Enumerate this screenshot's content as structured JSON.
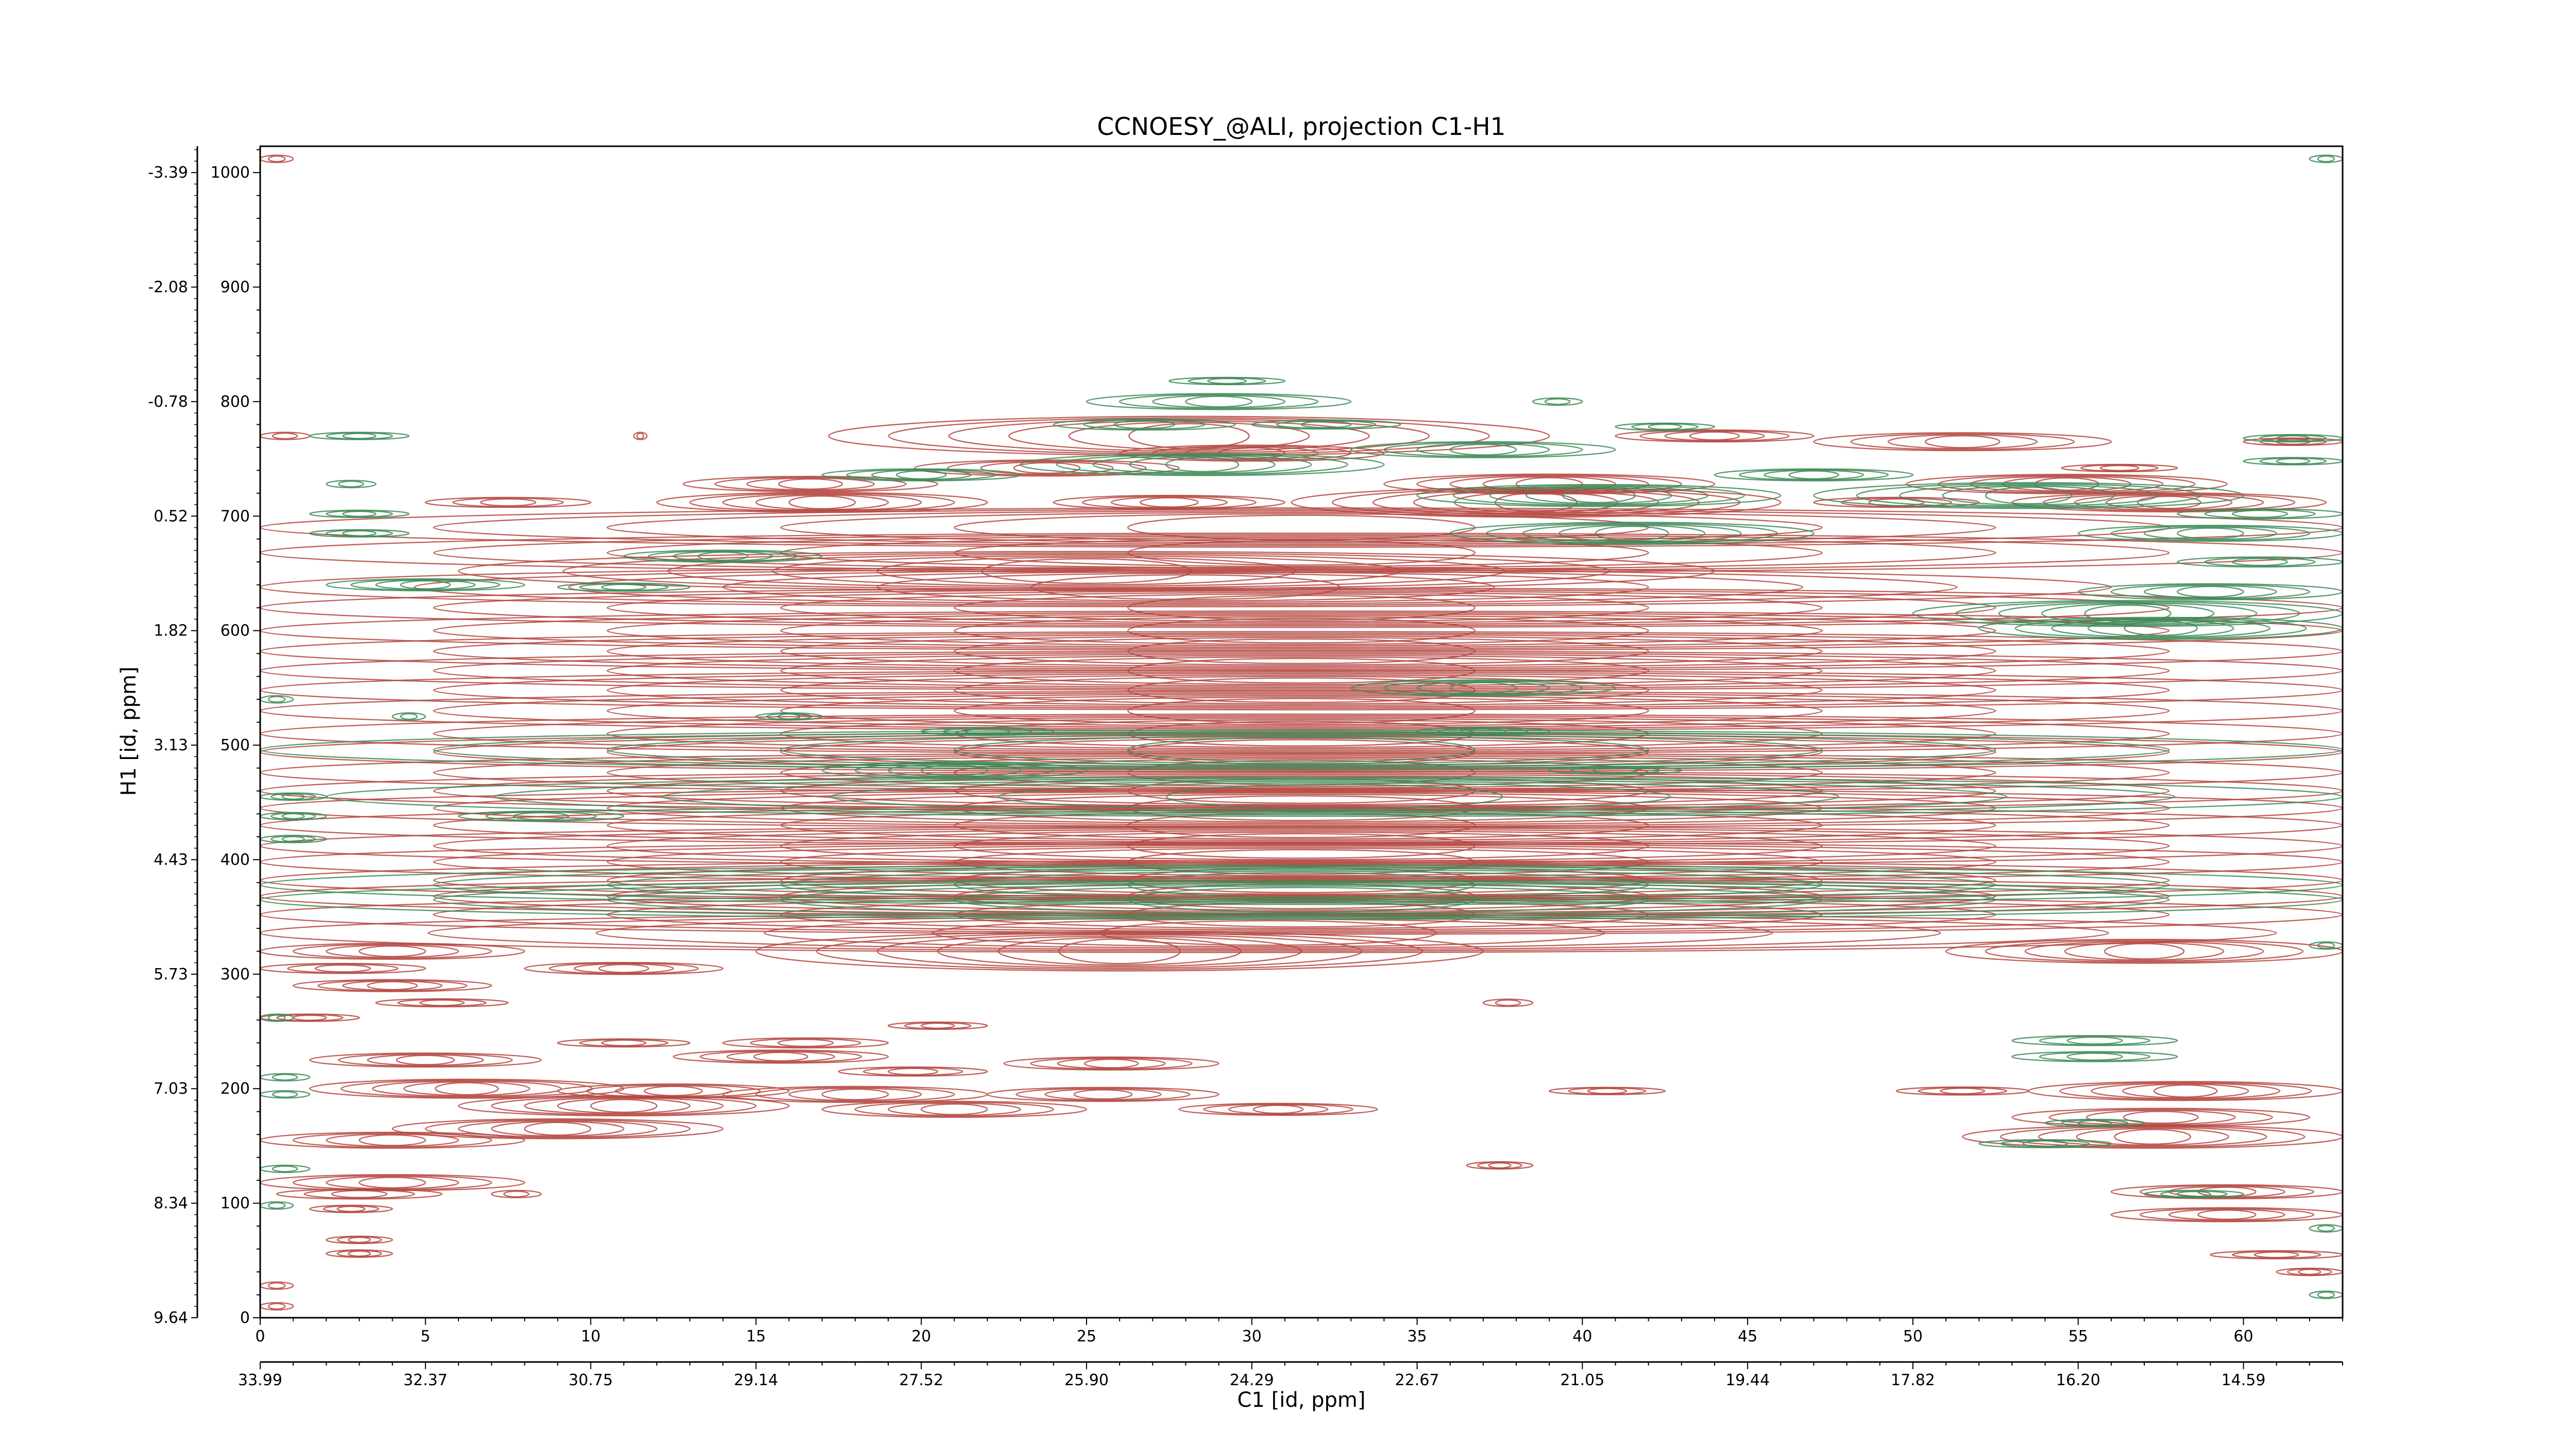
{
  "chart_data": {
    "type": "contour",
    "title": "CCNOESY_@ALI, projection C1-H1",
    "xlabel": "C1 [id, ppm]",
    "ylabel": "H1 [id, ppm]",
    "xlim": [
      0,
      63
    ],
    "ylim": [
      0,
      1023
    ],
    "grid": false,
    "x_index_ticks": [
      0,
      5,
      10,
      15,
      20,
      25,
      30,
      35,
      40,
      45,
      50,
      55,
      60
    ],
    "x_ppm_tick_labels": [
      "33.99",
      "32.37",
      "30.75",
      "29.14",
      "27.52",
      "25.90",
      "24.29",
      "22.67",
      "21.05",
      "19.44",
      "17.82",
      "16.20",
      "14.59"
    ],
    "y_index_ticks": [
      0,
      100,
      200,
      300,
      400,
      500,
      600,
      700,
      800,
      900,
      1000
    ],
    "y_ppm_tick_labels": [
      "9.64",
      "8.34",
      "7.03",
      "5.73",
      "4.43",
      "3.13",
      "1.82",
      "0.52",
      "-0.78",
      "-2.08",
      "-3.39"
    ],
    "series": [
      {
        "sign": "positive",
        "color": "#b5473f",
        "bands": [
          {
            "y": 1012,
            "x": [
              0,
              1
            ]
          },
          {
            "y": 770,
            "x": [
              0,
              1.5
            ]
          },
          {
            "y": 770,
            "x": [
              11.3,
              11.7
            ]
          },
          {
            "y": 770,
            "x": [
              17.2,
              39
            ]
          },
          {
            "y": 770,
            "x": [
              41,
              47
            ]
          },
          {
            "y": 765,
            "x": [
              47,
              56
            ]
          },
          {
            "y": 765,
            "x": [
              60,
              63
            ]
          },
          {
            "y": 755,
            "x": [
              26,
              34
            ]
          },
          {
            "y": 742,
            "x": [
              19.8,
              27.8
            ]
          },
          {
            "y": 742,
            "x": [
              54.5,
              58
            ]
          },
          {
            "y": 728,
            "x": [
              12.8,
              20.5
            ]
          },
          {
            "y": 728,
            "x": [
              34,
              44
            ]
          },
          {
            "y": 728,
            "x": [
              49.8,
              59.5
            ]
          },
          {
            "y": 712,
            "x": [
              5,
              10
            ]
          },
          {
            "y": 712,
            "x": [
              12,
              22
            ]
          },
          {
            "y": 712,
            "x": [
              24,
              31
            ]
          },
          {
            "y": 712,
            "x": [
              31.2,
              46
            ]
          },
          {
            "y": 712,
            "x": [
              47,
              52
            ]
          },
          {
            "y": 712,
            "x": [
              53,
              62.5
            ]
          },
          {
            "y": 690,
            "x": [
              0,
              63
            ]
          },
          {
            "y": 668,
            "x": [
              0,
              63
            ]
          },
          {
            "y": 652,
            "x": [
              6,
              44
            ]
          },
          {
            "y": 638,
            "x": [
              0,
              56
            ]
          },
          {
            "y": 620,
            "x": [
              0,
              63
            ]
          },
          {
            "y": 600,
            "x": [
              0,
              63
            ]
          },
          {
            "y": 582,
            "x": [
              0,
              63
            ]
          },
          {
            "y": 565,
            "x": [
              0,
              63
            ]
          },
          {
            "y": 548,
            "x": [
              0,
              63
            ]
          },
          {
            "y": 530,
            "x": [
              0,
              63
            ]
          },
          {
            "y": 510,
            "x": [
              0,
              63
            ]
          },
          {
            "y": 494,
            "x": [
              0,
              63
            ]
          },
          {
            "y": 476,
            "x": [
              0,
              63
            ]
          },
          {
            "y": 460,
            "x": [
              0,
              63
            ]
          },
          {
            "y": 445,
            "x": [
              0,
              63
            ]
          },
          {
            "y": 430,
            "x": [
              0,
              63
            ]
          },
          {
            "y": 412,
            "x": [
              0,
              63
            ]
          },
          {
            "y": 398,
            "x": [
              0,
              63
            ]
          },
          {
            "y": 382,
            "x": [
              0,
              63
            ]
          },
          {
            "y": 368,
            "x": [
              0,
              63
            ]
          },
          {
            "y": 352,
            "x": [
              0,
              63
            ]
          },
          {
            "y": 336,
            "x": [
              0,
              61
            ]
          },
          {
            "y": 320,
            "x": [
              0,
              8
            ]
          },
          {
            "y": 320,
            "x": [
              15,
              37
            ]
          },
          {
            "y": 320,
            "x": [
              51,
              63
            ]
          },
          {
            "y": 305,
            "x": [
              0,
              5
            ]
          },
          {
            "y": 305,
            "x": [
              8,
              14
            ]
          },
          {
            "y": 290,
            "x": [
              1,
              7
            ]
          },
          {
            "y": 275,
            "x": [
              3.5,
              7.5
            ]
          },
          {
            "y": 275,
            "x": [
              37,
              38.5
            ]
          },
          {
            "y": 262,
            "x": [
              0,
              3
            ]
          },
          {
            "y": 255,
            "x": [
              19,
              22
            ]
          },
          {
            "y": 240,
            "x": [
              9,
              13
            ]
          },
          {
            "y": 240,
            "x": [
              14,
              19
            ]
          },
          {
            "y": 228,
            "x": [
              12.5,
              19
            ]
          },
          {
            "y": 225,
            "x": [
              1.5,
              8.5
            ]
          },
          {
            "y": 222,
            "x": [
              22.5,
              29
            ]
          },
          {
            "y": 215,
            "x": [
              17.5,
              22
            ]
          },
          {
            "y": 200,
            "x": [
              1.5,
              11
            ]
          },
          {
            "y": 198,
            "x": [
              9,
              16
            ]
          },
          {
            "y": 195,
            "x": [
              14,
              22
            ]
          },
          {
            "y": 195,
            "x": [
              22,
              29
            ]
          },
          {
            "y": 198,
            "x": [
              39,
              42.5
            ]
          },
          {
            "y": 198,
            "x": [
              49.5,
              53.5
            ]
          },
          {
            "y": 198,
            "x": [
              53.5,
              63
            ]
          },
          {
            "y": 185,
            "x": [
              6,
              16
            ]
          },
          {
            "y": 182,
            "x": [
              17,
              25
            ]
          },
          {
            "y": 182,
            "x": [
              27.8,
              33.8
            ]
          },
          {
            "y": 175,
            "x": [
              53,
              62
            ]
          },
          {
            "y": 165,
            "x": [
              4,
              14
            ]
          },
          {
            "y": 158,
            "x": [
              51.5,
              63
            ]
          },
          {
            "y": 155,
            "x": [
              0,
              8
            ]
          },
          {
            "y": 133,
            "x": [
              36.5,
              38.5
            ]
          },
          {
            "y": 118,
            "x": [
              0,
              8
            ]
          },
          {
            "y": 110,
            "x": [
              56,
              63
            ]
          },
          {
            "y": 108,
            "x": [
              0.5,
              5.5
            ]
          },
          {
            "y": 108,
            "x": [
              7,
              8.5
            ]
          },
          {
            "y": 95,
            "x": [
              1.5,
              4
            ]
          },
          {
            "y": 90,
            "x": [
              56,
              63
            ]
          },
          {
            "y": 68,
            "x": [
              2,
              4
            ]
          },
          {
            "y": 56,
            "x": [
              2,
              4
            ]
          },
          {
            "y": 55,
            "x": [
              59,
              63
            ]
          },
          {
            "y": 40,
            "x": [
              61,
              63
            ]
          },
          {
            "y": 28,
            "x": [
              0,
              1
            ]
          },
          {
            "y": 10,
            "x": [
              0,
              1
            ]
          }
        ]
      },
      {
        "sign": "negative",
        "color": "#3d8a57",
        "bands": [
          {
            "y": 1012,
            "x": [
              62,
              63
            ]
          },
          {
            "y": 818,
            "x": [
              27.5,
              31
            ]
          },
          {
            "y": 800,
            "x": [
              25,
              33
            ]
          },
          {
            "y": 800,
            "x": [
              38.5,
              40
            ]
          },
          {
            "y": 780,
            "x": [
              24,
              29.5
            ]
          },
          {
            "y": 780,
            "x": [
              30,
              34.5
            ]
          },
          {
            "y": 778,
            "x": [
              41,
              44
            ]
          },
          {
            "y": 770,
            "x": [
              1.5,
              4.5
            ]
          },
          {
            "y": 768,
            "x": [
              60,
              63
            ]
          },
          {
            "y": 758,
            "x": [
              33,
              41
            ]
          },
          {
            "y": 748,
            "x": [
              60,
              63
            ]
          },
          {
            "y": 745,
            "x": [
              23,
              34
            ]
          },
          {
            "y": 736,
            "x": [
              17,
              23
            ]
          },
          {
            "y": 736,
            "x": [
              44,
              50
            ]
          },
          {
            "y": 728,
            "x": [
              2,
              3.5
            ]
          },
          {
            "y": 718,
            "x": [
              35,
              46
            ]
          },
          {
            "y": 718,
            "x": [
              47,
              60
            ]
          },
          {
            "y": 702,
            "x": [
              1.5,
              4.5
            ]
          },
          {
            "y": 702,
            "x": [
              58,
              63
            ]
          },
          {
            "y": 685,
            "x": [
              1.5,
              4.5
            ]
          },
          {
            "y": 685,
            "x": [
              36,
              47
            ]
          },
          {
            "y": 685,
            "x": [
              55,
              63
            ]
          },
          {
            "y": 665,
            "x": [
              11,
              17
            ]
          },
          {
            "y": 660,
            "x": [
              58,
              63
            ]
          },
          {
            "y": 640,
            "x": [
              2,
              8
            ]
          },
          {
            "y": 638,
            "x": [
              9,
              13
            ]
          },
          {
            "y": 634,
            "x": [
              55,
              63
            ]
          },
          {
            "y": 615,
            "x": [
              50,
              63
            ]
          },
          {
            "y": 602,
            "x": [
              52,
              63
            ]
          },
          {
            "y": 550,
            "x": [
              33,
              41
            ]
          },
          {
            "y": 540,
            "x": [
              0,
              1
            ]
          },
          {
            "y": 525,
            "x": [
              4,
              5
            ]
          },
          {
            "y": 525,
            "x": [
              15,
              17
            ]
          },
          {
            "y": 512,
            "x": [
              20,
              24
            ]
          },
          {
            "y": 512,
            "x": [
              35,
              39
            ]
          },
          {
            "y": 496,
            "x": [
              0,
              63
            ]
          },
          {
            "y": 478,
            "x": [
              17,
              25
            ]
          },
          {
            "y": 478,
            "x": [
              39,
              43
            ]
          },
          {
            "y": 455,
            "x": [
              0,
              2
            ]
          },
          {
            "y": 455,
            "x": [
              2,
              63
            ]
          },
          {
            "y": 438,
            "x": [
              0,
              2
            ]
          },
          {
            "y": 438,
            "x": [
              6,
              11
            ]
          },
          {
            "y": 418,
            "x": [
              0,
              2
            ]
          },
          {
            "y": 378,
            "x": [
              0,
              63
            ]
          },
          {
            "y": 365,
            "x": [
              0,
              63
            ]
          },
          {
            "y": 325,
            "x": [
              62,
              63
            ]
          },
          {
            "y": 262,
            "x": [
              0,
              1
            ]
          },
          {
            "y": 242,
            "x": [
              53,
              58
            ]
          },
          {
            "y": 228,
            "x": [
              53,
              58
            ]
          },
          {
            "y": 210,
            "x": [
              0,
              1.5
            ]
          },
          {
            "y": 195,
            "x": [
              0,
              1.5
            ]
          },
          {
            "y": 170,
            "x": [
              54,
              57
            ]
          },
          {
            "y": 152,
            "x": [
              52,
              56
            ]
          },
          {
            "y": 130,
            "x": [
              0,
              1.5
            ]
          },
          {
            "y": 108,
            "x": [
              57,
              60
            ]
          },
          {
            "y": 98,
            "x": [
              0,
              1
            ]
          },
          {
            "y": 78,
            "x": [
              62,
              63
            ]
          },
          {
            "y": 20,
            "x": [
              62,
              63
            ]
          }
        ]
      }
    ]
  }
}
